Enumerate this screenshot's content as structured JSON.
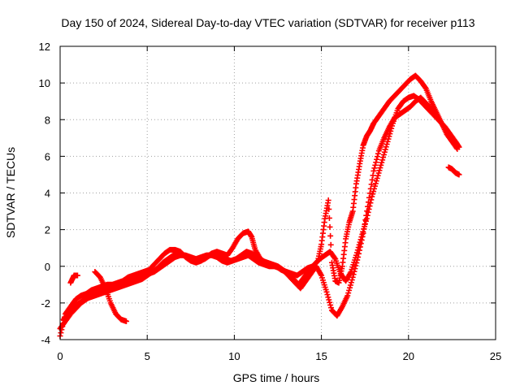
{
  "chart_data": {
    "type": "scatter",
    "title": "Day 150 of 2024, Sidereal Day-to-day VTEC variation (SDTVAR) for receiver p113",
    "xlabel": "GPS time / hours",
    "ylabel": "SDTVAR / TECUs",
    "xlim": [
      0,
      25
    ],
    "ylim": [
      -4,
      12
    ],
    "xticks": [
      0,
      5,
      10,
      15,
      20,
      25
    ],
    "yticks": [
      -4,
      -2,
      0,
      2,
      4,
      6,
      8,
      10,
      12
    ],
    "grid": true,
    "marker": "+",
    "color": "#ff0000",
    "series": [
      {
        "x": [
          0.0,
          0.3,
          0.6,
          0.9,
          1.2,
          1.5,
          1.8,
          2.1,
          2.4,
          2.7,
          3.0,
          3.3,
          3.6,
          3.9,
          4.2,
          4.5,
          4.8,
          5.1,
          5.4,
          5.7,
          6.0,
          6.3,
          6.6,
          6.9,
          7.2,
          7.5,
          7.8,
          8.1,
          8.4,
          8.7,
          9.0,
          9.3,
          9.6,
          9.9,
          10.2,
          10.5,
          10.8,
          11.0,
          11.2,
          11.5,
          11.8,
          12.1,
          12.4,
          12.7,
          13.0,
          13.3,
          13.6,
          13.9,
          14.2,
          14.5,
          14.8,
          15.0,
          15.2,
          15.4,
          15.6,
          15.8,
          16.0,
          16.2,
          16.4,
          16.6,
          16.8,
          17.0,
          17.2,
          17.4,
          17.6,
          17.8,
          18.0,
          18.3,
          18.6,
          18.9,
          19.2,
          19.5,
          19.8,
          20.1,
          20.4,
          20.7,
          21.0,
          21.3,
          21.6,
          21.9,
          22.2,
          22.5,
          22.8
        ],
        "y": [
          -3.8,
          -2.6,
          -2.2,
          -1.8,
          -1.6,
          -1.5,
          -1.3,
          -1.2,
          -1.1,
          -1.0,
          -1.0,
          -0.9,
          -0.8,
          -0.6,
          -0.5,
          -0.4,
          -0.3,
          -0.2,
          0.1,
          0.4,
          0.7,
          0.9,
          0.9,
          0.8,
          0.5,
          0.3,
          0.2,
          0.3,
          0.5,
          0.7,
          0.8,
          0.7,
          0.6,
          1.0,
          1.5,
          1.8,
          1.9,
          1.6,
          0.9,
          0.4,
          0.2,
          0.1,
          0.0,
          -0.2,
          -0.3,
          -0.4,
          -0.5,
          -0.3,
          -0.1,
          0.0,
          0.3,
          1.2,
          2.6,
          3.6,
          0.2,
          -0.8,
          -0.9,
          0.0,
          1.5,
          2.4,
          3.0,
          4.5,
          5.6,
          6.6,
          7.1,
          7.4,
          7.8,
          8.2,
          8.6,
          9.0,
          9.3,
          9.6,
          9.9,
          10.2,
          10.4,
          10.1,
          9.7,
          9.0,
          8.4,
          7.8,
          7.2,
          6.8,
          6.4
        ]
      },
      {
        "x": [
          0.0,
          0.3,
          0.6,
          0.9,
          1.2,
          1.5,
          1.8,
          2.1,
          2.4,
          2.7,
          3.0,
          3.3,
          3.6,
          3.9,
          4.2,
          4.5,
          4.8,
          5.1,
          5.4,
          5.7,
          6.0,
          6.3,
          6.6,
          6.9,
          7.2,
          7.5,
          7.8,
          8.1,
          8.4,
          8.7,
          9.0,
          9.3,
          9.6,
          9.9,
          10.2,
          10.5,
          10.8,
          11.1,
          11.4,
          11.7,
          12.0,
          12.3,
          12.6,
          12.9,
          13.2,
          13.5,
          13.8,
          14.1,
          14.4,
          14.7,
          15.0,
          15.3,
          15.6,
          15.9,
          16.2,
          16.5,
          16.8,
          17.1,
          17.4,
          17.7,
          18.0,
          18.3,
          18.6,
          18.9,
          19.2,
          19.5,
          19.8,
          20.1,
          20.4,
          20.7,
          21.0,
          21.3,
          21.6,
          21.9,
          22.2
        ],
        "y": [
          -3.4,
          -3.0,
          -2.6,
          -2.3,
          -2.0,
          -1.8,
          -1.6,
          -1.5,
          -1.4,
          -1.3,
          -1.2,
          -1.1,
          -1.0,
          -0.8,
          -0.7,
          -0.6,
          -0.5,
          -0.4,
          -0.3,
          -0.1,
          0.1,
          0.3,
          0.5,
          0.6,
          0.6,
          0.5,
          0.4,
          0.5,
          0.6,
          0.6,
          0.5,
          0.3,
          0.2,
          0.3,
          0.4,
          0.5,
          0.6,
          0.4,
          0.2,
          0.1,
          0.0,
          0.0,
          -0.1,
          -0.3,
          -0.6,
          -0.9,
          -1.2,
          -0.8,
          -0.4,
          0.0,
          -0.5,
          -1.4,
          -2.4,
          -2.7,
          -2.2,
          -1.6,
          -0.6,
          0.5,
          1.8,
          3.5,
          5.2,
          6.3,
          7.0,
          7.6,
          8.1,
          8.3,
          8.5,
          8.7,
          9.0,
          9.2,
          8.9,
          8.6,
          8.2,
          7.8,
          7.4
        ]
      },
      {
        "x": [
          0.2,
          0.5,
          0.8,
          1.1,
          1.4,
          1.7,
          2.0,
          2.3,
          2.6,
          2.9,
          3.2,
          3.5,
          3.8,
          4.1,
          4.4,
          4.7,
          5.0,
          5.3,
          5.6,
          5.9,
          6.2,
          6.5,
          6.8,
          7.1,
          7.4,
          7.7,
          8.0,
          8.3,
          8.6,
          8.9,
          9.2,
          9.5,
          9.8,
          10.1,
          10.4,
          10.7,
          11.0,
          11.3,
          11.6,
          11.9,
          12.2,
          12.5,
          12.8,
          13.1,
          13.4,
          13.7,
          14.0,
          14.3,
          14.6,
          14.9,
          15.2,
          15.5,
          15.8,
          16.1,
          16.4,
          16.7,
          17.0,
          17.3,
          17.6,
          17.9,
          18.2,
          18.5,
          18.8,
          19.1,
          19.4,
          19.7,
          20.0,
          20.3,
          20.6,
          20.9,
          21.2,
          21.5,
          21.8,
          22.1,
          22.4,
          22.7,
          22.9
        ],
        "y": [
          -2.9,
          -2.5,
          -2.2,
          -2.0,
          -1.8,
          -1.7,
          -1.6,
          -1.5,
          -1.4,
          -1.3,
          -1.2,
          -1.1,
          -1.0,
          -0.9,
          -0.8,
          -0.7,
          -0.5,
          -0.3,
          -0.1,
          0.2,
          0.4,
          0.6,
          0.7,
          0.6,
          0.4,
          0.3,
          0.3,
          0.4,
          0.6,
          0.7,
          0.6,
          0.4,
          0.3,
          0.4,
          0.6,
          0.8,
          0.7,
          0.5,
          0.3,
          0.2,
          0.1,
          0.0,
          -0.2,
          -0.4,
          -0.7,
          -1.0,
          -0.6,
          -0.2,
          0.1,
          0.4,
          0.6,
          0.8,
          0.4,
          -0.4,
          -0.8,
          -0.3,
          0.6,
          1.6,
          2.6,
          3.8,
          4.8,
          5.8,
          6.8,
          7.8,
          8.6,
          9.0,
          9.2,
          9.3,
          9.1,
          8.8,
          8.5,
          8.2,
          7.9,
          7.6,
          7.2,
          6.8,
          6.5
        ]
      },
      {
        "x": [
          2.0,
          2.3,
          2.6,
          2.9,
          3.2,
          3.5,
          3.8
        ],
        "y": [
          -0.3,
          -0.6,
          -1.2,
          -2.0,
          -2.6,
          -2.9,
          -3.0
        ]
      },
      {
        "x": [
          0.6,
          0.8,
          1.0
        ],
        "y": [
          -0.9,
          -0.5,
          -0.5
        ]
      },
      {
        "x": [
          22.3,
          22.5,
          22.7,
          22.9
        ],
        "y": [
          5.4,
          5.3,
          5.1,
          5.0
        ]
      }
    ]
  }
}
